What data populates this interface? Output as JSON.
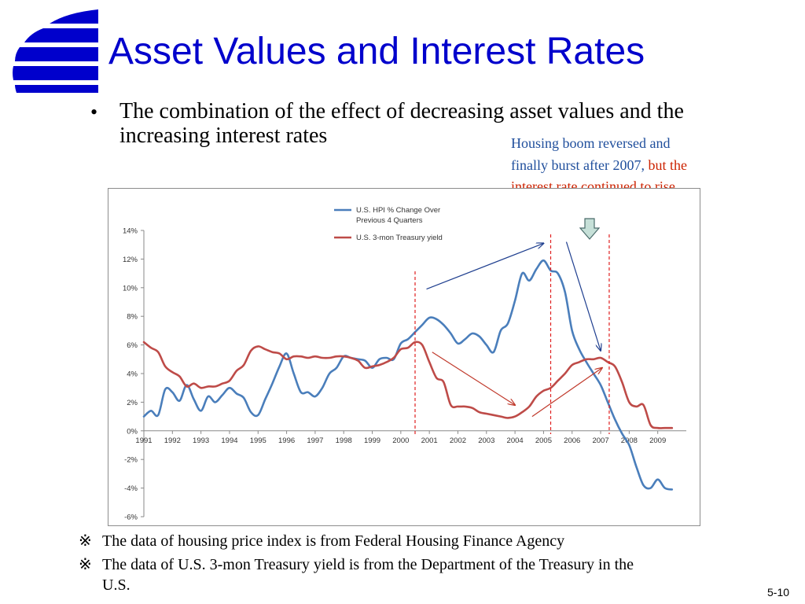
{
  "slide": {
    "title": "Asset Values and Interest Rates",
    "bullet": "The combination of the effect of decreasing asset values and the increasing interest rates",
    "annotation_line1": "Housing boom reversed and finally burst after 2007, ",
    "annotation_line2": "but the interest rate continued to rise",
    "note_mark": "※",
    "note1": "The data of housing price index is from Federal Housing Finance Agency",
    "note2_first": "The data of U.S. 3-mon Treasury yield is from the Department of the Treasury in the",
    "note2_second": "U.S.",
    "slide_number": "5-10",
    "colors": {
      "title": "#0000cc",
      "logo": "#0000cc",
      "annotation_blue": "#1f4e9c",
      "annotation_red": "#cc2200"
    }
  },
  "chart_data": {
    "type": "line",
    "title": "",
    "xlabel": "",
    "ylabel": "",
    "x_categories": [
      "1991",
      "1992",
      "1993",
      "1994",
      "1995",
      "1996",
      "1997",
      "1998",
      "1999",
      "2000",
      "2001",
      "2002",
      "2003",
      "2004",
      "2005",
      "2006",
      "2007",
      "2008",
      "2009"
    ],
    "xlim": [
      1991,
      2010
    ],
    "ylim": [
      -0.06,
      0.14
    ],
    "y_ticks": [
      "-6%",
      "-4%",
      "-2%",
      "0%",
      "2%",
      "4%",
      "6%",
      "8%",
      "10%",
      "12%",
      "14%"
    ],
    "grid": false,
    "legend_position": "top-center",
    "series": [
      {
        "name": "U.S. HPI % Change Over Previous 4 Quarters",
        "color": "#4a7ebb",
        "points": [
          [
            1991.0,
            0.01
          ],
          [
            1991.25,
            0.014
          ],
          [
            1991.5,
            0.011
          ],
          [
            1991.75,
            0.029
          ],
          [
            1992.0,
            0.027
          ],
          [
            1992.25,
            0.021
          ],
          [
            1992.5,
            0.032
          ],
          [
            1992.75,
            0.022
          ],
          [
            1993.0,
            0.014
          ],
          [
            1993.25,
            0.024
          ],
          [
            1993.5,
            0.02
          ],
          [
            1993.75,
            0.025
          ],
          [
            1994.0,
            0.03
          ],
          [
            1994.25,
            0.026
          ],
          [
            1994.5,
            0.023
          ],
          [
            1994.75,
            0.013
          ],
          [
            1995.0,
            0.011
          ],
          [
            1995.25,
            0.022
          ],
          [
            1995.5,
            0.033
          ],
          [
            1995.75,
            0.045
          ],
          [
            1996.0,
            0.054
          ],
          [
            1996.25,
            0.04
          ],
          [
            1996.5,
            0.027
          ],
          [
            1996.75,
            0.027
          ],
          [
            1997.0,
            0.024
          ],
          [
            1997.25,
            0.03
          ],
          [
            1997.5,
            0.04
          ],
          [
            1997.75,
            0.044
          ],
          [
            1998.0,
            0.052
          ],
          [
            1998.25,
            0.051
          ],
          [
            1998.5,
            0.05
          ],
          [
            1998.75,
            0.049
          ],
          [
            1999.0,
            0.044
          ],
          [
            1999.25,
            0.05
          ],
          [
            1999.5,
            0.051
          ],
          [
            1999.75,
            0.05
          ],
          [
            2000.0,
            0.061
          ],
          [
            2000.25,
            0.064
          ],
          [
            2000.5,
            0.069
          ],
          [
            2000.75,
            0.074
          ],
          [
            2001.0,
            0.079
          ],
          [
            2001.25,
            0.078
          ],
          [
            2001.5,
            0.074
          ],
          [
            2001.75,
            0.068
          ],
          [
            2002.0,
            0.061
          ],
          [
            2002.25,
            0.064
          ],
          [
            2002.5,
            0.068
          ],
          [
            2002.75,
            0.066
          ],
          [
            2003.0,
            0.06
          ],
          [
            2003.25,
            0.055
          ],
          [
            2003.5,
            0.07
          ],
          [
            2003.75,
            0.075
          ],
          [
            2004.0,
            0.091
          ],
          [
            2004.25,
            0.11
          ],
          [
            2004.5,
            0.105
          ],
          [
            2004.75,
            0.113
          ],
          [
            2005.0,
            0.119
          ],
          [
            2005.25,
            0.112
          ],
          [
            2005.5,
            0.11
          ],
          [
            2005.75,
            0.097
          ],
          [
            2006.0,
            0.07
          ],
          [
            2006.25,
            0.057
          ],
          [
            2006.5,
            0.048
          ],
          [
            2006.75,
            0.04
          ],
          [
            2007.0,
            0.032
          ],
          [
            2007.25,
            0.02
          ],
          [
            2007.5,
            0.008
          ],
          [
            2007.75,
            -0.002
          ],
          [
            2008.0,
            -0.01
          ],
          [
            2008.25,
            -0.025
          ],
          [
            2008.5,
            -0.038
          ],
          [
            2008.75,
            -0.04
          ],
          [
            2009.0,
            -0.034
          ],
          [
            2009.25,
            -0.04
          ],
          [
            2009.5,
            -0.041
          ]
        ]
      },
      {
        "name": "U.S. 3-mon Treasury yield",
        "color": "#be4b48",
        "points": [
          [
            1991.0,
            0.062
          ],
          [
            1991.25,
            0.058
          ],
          [
            1991.5,
            0.055
          ],
          [
            1991.75,
            0.045
          ],
          [
            1992.0,
            0.041
          ],
          [
            1992.25,
            0.038
          ],
          [
            1992.5,
            0.031
          ],
          [
            1992.75,
            0.033
          ],
          [
            1993.0,
            0.03
          ],
          [
            1993.25,
            0.031
          ],
          [
            1993.5,
            0.031
          ],
          [
            1993.75,
            0.033
          ],
          [
            1994.0,
            0.035
          ],
          [
            1994.25,
            0.042
          ],
          [
            1994.5,
            0.046
          ],
          [
            1994.75,
            0.056
          ],
          [
            1995.0,
            0.059
          ],
          [
            1995.25,
            0.057
          ],
          [
            1995.5,
            0.055
          ],
          [
            1995.75,
            0.054
          ],
          [
            1996.0,
            0.05
          ],
          [
            1996.25,
            0.052
          ],
          [
            1996.5,
            0.052
          ],
          [
            1996.75,
            0.051
          ],
          [
            1997.0,
            0.052
          ],
          [
            1997.25,
            0.051
          ],
          [
            1997.5,
            0.051
          ],
          [
            1997.75,
            0.052
          ],
          [
            1998.0,
            0.052
          ],
          [
            1998.25,
            0.051
          ],
          [
            1998.5,
            0.049
          ],
          [
            1998.75,
            0.044
          ],
          [
            1999.0,
            0.045
          ],
          [
            1999.25,
            0.046
          ],
          [
            1999.5,
            0.048
          ],
          [
            1999.75,
            0.051
          ],
          [
            2000.0,
            0.057
          ],
          [
            2000.25,
            0.058
          ],
          [
            2000.5,
            0.062
          ],
          [
            2000.75,
            0.06
          ],
          [
            2001.0,
            0.048
          ],
          [
            2001.25,
            0.037
          ],
          [
            2001.5,
            0.034
          ],
          [
            2001.75,
            0.018
          ],
          [
            2002.0,
            0.017
          ],
          [
            2002.25,
            0.017
          ],
          [
            2002.5,
            0.016
          ],
          [
            2002.75,
            0.013
          ],
          [
            2003.0,
            0.012
          ],
          [
            2003.25,
            0.011
          ],
          [
            2003.5,
            0.01
          ],
          [
            2003.75,
            0.009
          ],
          [
            2004.0,
            0.01
          ],
          [
            2004.25,
            0.013
          ],
          [
            2004.5,
            0.017
          ],
          [
            2004.75,
            0.024
          ],
          [
            2005.0,
            0.028
          ],
          [
            2005.25,
            0.03
          ],
          [
            2005.5,
            0.035
          ],
          [
            2005.75,
            0.04
          ],
          [
            2006.0,
            0.046
          ],
          [
            2006.25,
            0.048
          ],
          [
            2006.5,
            0.05
          ],
          [
            2006.75,
            0.05
          ],
          [
            2007.0,
            0.051
          ],
          [
            2007.25,
            0.048
          ],
          [
            2007.5,
            0.045
          ],
          [
            2007.75,
            0.034
          ],
          [
            2008.0,
            0.02
          ],
          [
            2008.25,
            0.017
          ],
          [
            2008.5,
            0.018
          ],
          [
            2008.75,
            0.004
          ],
          [
            2009.0,
            0.002
          ],
          [
            2009.25,
            0.002
          ],
          [
            2009.5,
            0.002
          ]
        ]
      }
    ],
    "annotations": {
      "vertical_dashed_lines_x": [
        2000.5,
        2005.25,
        2007.3
      ],
      "blue_arrows": [
        {
          "from": [
            2000.9,
            0.099
          ],
          "to": [
            2005.0,
            0.131
          ]
        },
        {
          "from": [
            2005.8,
            0.132
          ],
          "to": [
            2007.0,
            0.056
          ]
        }
      ],
      "red_arrows": [
        {
          "from": [
            2001.1,
            0.055
          ],
          "to": [
            2004.0,
            0.018
          ]
        },
        {
          "from": [
            2004.6,
            0.01
          ],
          "to": [
            2007.05,
            0.044
          ]
        }
      ],
      "indicator_arrow": "down-arrow-icon"
    }
  }
}
